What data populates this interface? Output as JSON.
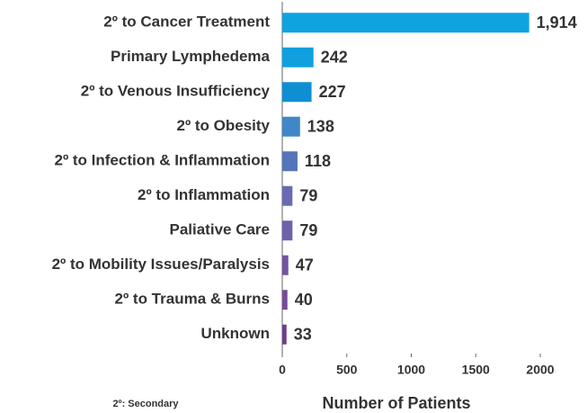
{
  "chart_data": {
    "type": "bar",
    "orientation": "horizontal",
    "categories": [
      "2º to Cancer Treatment",
      "Primary Lymphedema",
      "2º to Venous Insufficiency",
      "2º to Obesity",
      "2º to Infection & Inflammation",
      "2º to Inflammation",
      "Paliative Care",
      "2º to Mobility Issues/Paralysis",
      "2º to Trauma & Burns",
      "Unknown"
    ],
    "values": [
      1914,
      242,
      227,
      138,
      118,
      79,
      79,
      47,
      40,
      33
    ],
    "value_labels": [
      "1,914",
      "242",
      "227",
      "138",
      "118",
      "79",
      "79",
      "47",
      "40",
      "33"
    ],
    "colors": [
      "#0fa3e0",
      "#10a0df",
      "#0e8fd3",
      "#3f87c8",
      "#5574b9",
      "#6a6ab2",
      "#6c62ab",
      "#72549f",
      "#744c98",
      "#6e3d8c"
    ],
    "xlim": [
      0,
      2000
    ],
    "xticks": [
      0,
      500,
      1000,
      1500,
      2000
    ],
    "xlabel": "Number of Patients",
    "note": "2º: Secondary"
  }
}
